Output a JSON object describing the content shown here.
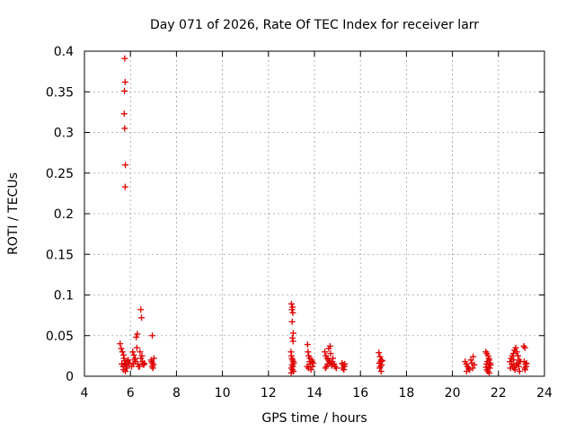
{
  "chart_data": {
    "type": "scatter",
    "title": "Day 071 of 2026, Rate Of TEC Index for receiver larr",
    "xlabel": "GPS time / hours",
    "ylabel": "ROTI / TECUs",
    "xlim": [
      4,
      24
    ],
    "ylim": [
      0,
      0.4
    ],
    "grid": true,
    "marker": "+",
    "color": "#e00000",
    "x_ticks": [
      {
        "value": 4,
        "label": "4"
      },
      {
        "value": 6,
        "label": "6"
      },
      {
        "value": 8,
        "label": "8"
      },
      {
        "value": 10,
        "label": "10"
      },
      {
        "value": 12,
        "label": "12"
      },
      {
        "value": 14,
        "label": "14"
      },
      {
        "value": 16,
        "label": "16"
      },
      {
        "value": 18,
        "label": "18"
      },
      {
        "value": 20,
        "label": "20"
      },
      {
        "value": 22,
        "label": "22"
      },
      {
        "value": 24,
        "label": "24"
      }
    ],
    "y_ticks": [
      {
        "value": 0,
        "label": "0"
      },
      {
        "value": 0.05,
        "label": "0.05"
      },
      {
        "value": 0.1,
        "label": "0.1"
      },
      {
        "value": 0.15,
        "label": "0.15"
      },
      {
        "value": 0.2,
        "label": "0.2"
      },
      {
        "value": 0.25,
        "label": "0.25"
      },
      {
        "value": 0.3,
        "label": "0.3"
      },
      {
        "value": 0.35,
        "label": "0.35"
      },
      {
        "value": 0.4,
        "label": "0.4"
      }
    ],
    "series": [
      {
        "name": "ROTI",
        "points": [
          [
            5.75,
            0.391
          ],
          [
            5.77,
            0.362
          ],
          [
            5.74,
            0.351
          ],
          [
            5.73,
            0.323
          ],
          [
            5.75,
            0.305
          ],
          [
            5.78,
            0.26
          ],
          [
            5.77,
            0.233
          ],
          [
            5.55,
            0.04
          ],
          [
            5.6,
            0.034
          ],
          [
            5.65,
            0.03
          ],
          [
            5.7,
            0.026
          ],
          [
            5.72,
            0.022
          ],
          [
            5.74,
            0.019
          ],
          [
            5.76,
            0.016
          ],
          [
            5.8,
            0.014
          ],
          [
            5.82,
            0.012
          ],
          [
            5.85,
            0.01
          ],
          [
            5.7,
            0.008
          ],
          [
            5.78,
            0.006
          ],
          [
            5.88,
            0.018
          ],
          [
            5.62,
            0.015
          ],
          [
            5.68,
            0.012
          ],
          [
            5.9,
            0.02
          ],
          [
            5.95,
            0.016
          ],
          [
            6.1,
            0.03
          ],
          [
            6.15,
            0.026
          ],
          [
            6.2,
            0.022
          ],
          [
            6.22,
            0.018
          ],
          [
            6.25,
            0.048
          ],
          [
            6.3,
            0.052
          ],
          [
            6.05,
            0.012
          ],
          [
            6.12,
            0.015
          ],
          [
            6.18,
            0.02
          ],
          [
            6.28,
            0.035
          ],
          [
            6.32,
            0.015
          ],
          [
            6.35,
            0.012
          ],
          [
            6.45,
            0.082
          ],
          [
            6.48,
            0.072
          ],
          [
            6.42,
            0.03
          ],
          [
            6.5,
            0.025
          ],
          [
            6.46,
            0.022
          ],
          [
            6.52,
            0.018
          ],
          [
            6.55,
            0.015
          ],
          [
            6.4,
            0.012
          ],
          [
            6.58,
            0.014
          ],
          [
            6.6,
            0.016
          ],
          [
            6.95,
            0.05
          ],
          [
            6.9,
            0.02
          ],
          [
            6.92,
            0.018
          ],
          [
            6.96,
            0.016
          ],
          [
            7.0,
            0.014
          ],
          [
            6.94,
            0.012
          ],
          [
            6.98,
            0.01
          ],
          [
            7.02,
            0.022
          ],
          [
            13.0,
            0.089
          ],
          [
            13.05,
            0.085
          ],
          [
            13.02,
            0.082
          ],
          [
            13.06,
            0.078
          ],
          [
            13.03,
            0.067
          ],
          [
            13.08,
            0.053
          ],
          [
            13.04,
            0.047
          ],
          [
            13.07,
            0.043
          ],
          [
            12.98,
            0.03
          ],
          [
            13.0,
            0.025
          ],
          [
            13.02,
            0.022
          ],
          [
            13.05,
            0.02
          ],
          [
            13.08,
            0.018
          ],
          [
            13.1,
            0.016
          ],
          [
            13.03,
            0.014
          ],
          [
            13.06,
            0.012
          ],
          [
            13.0,
            0.01
          ],
          [
            13.04,
            0.008
          ],
          [
            13.09,
            0.006
          ],
          [
            12.99,
            0.004
          ],
          [
            13.7,
            0.039
          ],
          [
            13.72,
            0.03
          ],
          [
            13.75,
            0.025
          ],
          [
            13.8,
            0.022
          ],
          [
            13.78,
            0.018
          ],
          [
            13.82,
            0.015
          ],
          [
            13.68,
            0.012
          ],
          [
            13.74,
            0.01
          ],
          [
            13.85,
            0.008
          ],
          [
            13.9,
            0.018
          ],
          [
            13.95,
            0.016
          ],
          [
            13.92,
            0.012
          ],
          [
            13.88,
            0.02
          ],
          [
            14.45,
            0.03
          ],
          [
            14.5,
            0.025
          ],
          [
            14.55,
            0.022
          ],
          [
            14.6,
            0.02
          ],
          [
            14.65,
            0.018
          ],
          [
            14.58,
            0.015
          ],
          [
            14.52,
            0.012
          ],
          [
            14.48,
            0.01
          ],
          [
            14.62,
            0.034
          ],
          [
            14.68,
            0.037
          ],
          [
            14.7,
            0.028
          ],
          [
            14.72,
            0.016
          ],
          [
            14.75,
            0.013
          ],
          [
            14.78,
            0.018
          ],
          [
            14.8,
            0.022
          ],
          [
            14.85,
            0.015
          ],
          [
            14.9,
            0.012
          ],
          [
            14.95,
            0.01
          ],
          [
            15.2,
            0.016
          ],
          [
            15.25,
            0.014
          ],
          [
            15.3,
            0.012
          ],
          [
            15.22,
            0.01
          ],
          [
            15.28,
            0.008
          ],
          [
            15.32,
            0.015
          ],
          [
            16.8,
            0.029
          ],
          [
            16.85,
            0.024
          ],
          [
            16.9,
            0.02
          ],
          [
            16.88,
            0.018
          ],
          [
            16.82,
            0.016
          ],
          [
            16.92,
            0.014
          ],
          [
            16.86,
            0.012
          ],
          [
            16.84,
            0.01
          ],
          [
            16.9,
            0.006
          ],
          [
            16.95,
            0.019
          ],
          [
            20.55,
            0.018
          ],
          [
            20.6,
            0.015
          ],
          [
            20.65,
            0.012
          ],
          [
            20.7,
            0.01
          ],
          [
            20.75,
            0.008
          ],
          [
            20.8,
            0.02
          ],
          [
            20.85,
            0.016
          ],
          [
            20.9,
            0.024
          ],
          [
            20.95,
            0.014
          ],
          [
            20.62,
            0.006
          ],
          [
            20.88,
            0.01
          ],
          [
            21.45,
            0.03
          ],
          [
            21.5,
            0.028
          ],
          [
            21.55,
            0.025
          ],
          [
            21.58,
            0.022
          ],
          [
            21.6,
            0.02
          ],
          [
            21.52,
            0.018
          ],
          [
            21.48,
            0.015
          ],
          [
            21.56,
            0.012
          ],
          [
            21.62,
            0.01
          ],
          [
            21.5,
            0.008
          ],
          [
            21.54,
            0.006
          ],
          [
            21.6,
            0.004
          ],
          [
            21.64,
            0.016
          ],
          [
            21.66,
            0.014
          ],
          [
            21.46,
            0.011
          ],
          [
            22.5,
            0.018
          ],
          [
            22.55,
            0.022
          ],
          [
            22.6,
            0.025
          ],
          [
            22.65,
            0.028
          ],
          [
            22.7,
            0.032
          ],
          [
            22.75,
            0.035
          ],
          [
            22.8,
            0.03
          ],
          [
            22.85,
            0.025
          ],
          [
            22.9,
            0.02
          ],
          [
            22.95,
            0.018
          ],
          [
            22.58,
            0.015
          ],
          [
            22.62,
            0.012
          ],
          [
            22.68,
            0.01
          ],
          [
            22.72,
            0.008
          ],
          [
            22.78,
            0.014
          ],
          [
            22.82,
            0.016
          ],
          [
            22.88,
            0.012
          ],
          [
            22.92,
            0.006
          ],
          [
            22.52,
            0.01
          ],
          [
            22.66,
            0.02
          ],
          [
            23.1,
            0.037
          ],
          [
            23.15,
            0.035
          ],
          [
            23.12,
            0.018
          ],
          [
            23.18,
            0.015
          ],
          [
            23.2,
            0.012
          ],
          [
            23.14,
            0.01
          ],
          [
            23.16,
            0.008
          ],
          [
            23.22,
            0.016
          ]
        ]
      }
    ]
  }
}
